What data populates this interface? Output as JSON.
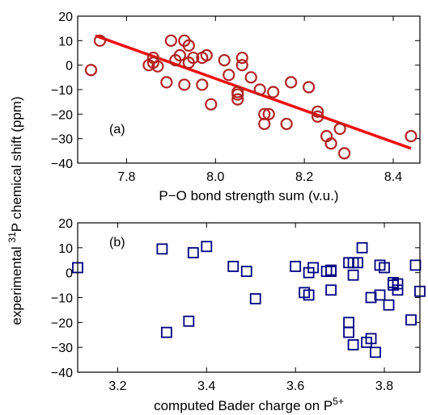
{
  "figure": {
    "shared_ylabel_prefix": "experimental ",
    "shared_ylabel_sup": "31",
    "shared_ylabel_suffix": "P chemical shift (ppm)"
  },
  "chart_data": [
    {
      "type": "scatter",
      "panel_label": "(a)",
      "xlabel": "P−O bond strength sum (v.u.)",
      "xlim": [
        7.69,
        8.46
      ],
      "ylim": [
        -40,
        20
      ],
      "xticks": [
        7.8,
        8.0,
        8.2,
        8.4
      ],
      "xtick_labels": [
        "7.8",
        "8.0",
        "8.2",
        "8.4"
      ],
      "yticks": [
        -40,
        -30,
        -20,
        -10,
        0,
        10,
        20
      ],
      "ytick_labels": [
        "−40",
        "−30",
        "−20",
        "−10",
        "0",
        "10",
        "20"
      ],
      "marker": "circle",
      "color": "#b22222",
      "fit_line": {
        "x": [
          7.73,
          8.44
        ],
        "y": [
          12,
          -34
        ],
        "color": "#ee1111"
      },
      "x": [
        7.72,
        7.74,
        7.85,
        7.86,
        7.87,
        7.86,
        7.89,
        7.9,
        7.91,
        7.92,
        7.93,
        7.93,
        7.94,
        7.94,
        7.95,
        7.97,
        7.97,
        7.98,
        7.99,
        8.02,
        8.03,
        8.05,
        8.06,
        8.05,
        8.05,
        8.06,
        8.08,
        8.1,
        8.11,
        8.12,
        8.11,
        8.13,
        8.16,
        8.17,
        8.21,
        8.23,
        8.23,
        8.25,
        8.26,
        8.28,
        8.29,
        8.44
      ],
      "y": [
        -2,
        10,
        0,
        3,
        -0.5,
        1,
        -7,
        10,
        2,
        4,
        10,
        -8,
        8,
        1,
        3,
        -8,
        3,
        4,
        -16,
        2,
        -4,
        -11,
        0,
        -14,
        -12,
        3,
        -5,
        -10,
        -20,
        -20,
        -24,
        -11,
        -24,
        -7,
        -9,
        -19,
        -21,
        -29,
        -32,
        -26,
        -36,
        -29
      ]
    },
    {
      "type": "scatter",
      "panel_label": "(b)",
      "xlabel": "computed Bader charge on P",
      "xlabel_sup": "5+",
      "xlim": [
        3.11,
        3.88
      ],
      "ylim": [
        -40,
        20
      ],
      "xticks": [
        3.2,
        3.4,
        3.6,
        3.8
      ],
      "xtick_labels": [
        "3.2",
        "3.4",
        "3.6",
        "3.8"
      ],
      "yticks": [
        -40,
        -30,
        -20,
        -10,
        0,
        10,
        20
      ],
      "ytick_labels": [
        "−40",
        "−30",
        "−20",
        "−10",
        "0",
        "10",
        "20"
      ],
      "marker": "square",
      "color": "#000080",
      "x": [
        3.11,
        3.3,
        3.31,
        3.36,
        3.37,
        3.4,
        3.46,
        3.49,
        3.51,
        3.6,
        3.62,
        3.63,
        3.63,
        3.64,
        3.67,
        3.68,
        3.68,
        3.68,
        3.72,
        3.72,
        3.72,
        3.73,
        3.73,
        3.73,
        3.74,
        3.75,
        3.76,
        3.77,
        3.77,
        3.78,
        3.79,
        3.79,
        3.8,
        3.81,
        3.82,
        3.82,
        3.83,
        3.83,
        3.86,
        3.87,
        3.88
      ],
      "y": [
        2,
        9.5,
        -24,
        -19.5,
        8,
        10.5,
        2.5,
        0.5,
        -10.5,
        2.5,
        -8,
        -9,
        0,
        2,
        0.5,
        1,
        0.5,
        -7,
        4,
        -24,
        -20,
        -1,
        -29,
        4,
        4,
        10,
        -28,
        -10,
        -26.5,
        -32,
        3,
        -9,
        2,
        -13,
        -5,
        -4,
        -7,
        -4.5,
        -19,
        3,
        -7.5
      ]
    }
  ]
}
